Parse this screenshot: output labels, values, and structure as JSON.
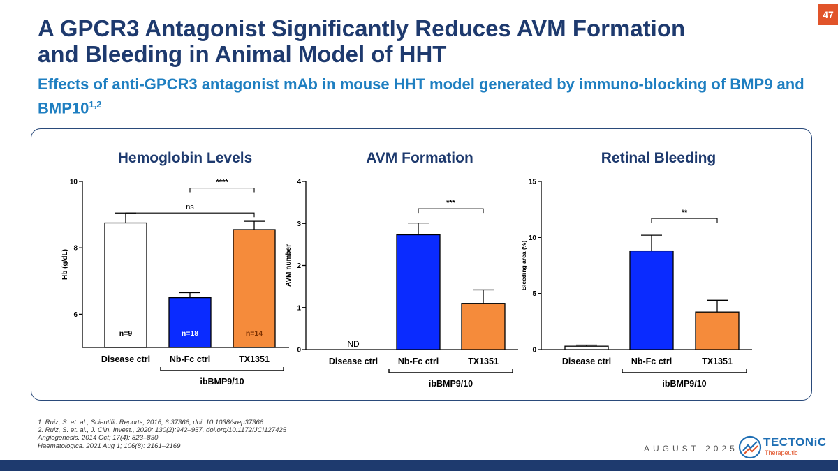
{
  "page_number": "47",
  "title_lines": [
    "A GPCR3 Antagonist Significantly Reduces AVM Formation",
    "and Bleeding in Animal Model of HHT"
  ],
  "subtitle": {
    "text": "Effects of anti-GPCR3 antagonist mAb in mouse HHT model generated by immuno-blocking of BMP9 and BMP10",
    "superscript": "1,2"
  },
  "colors": {
    "primary": "#1e3a6e",
    "accent_blue": "#1f7fc1",
    "bar_blue": "#0a2bff",
    "bar_orange": "#f58b3b",
    "page_badge": "#e1542a"
  },
  "chart_data": [
    {
      "type": "bar",
      "title": "Hemoglobin Levels",
      "categories": [
        "Disease ctrl",
        "Nb-Fc ctrl",
        "TX1351"
      ],
      "values": [
        8.75,
        6.5,
        8.55
      ],
      "errors": [
        0.3,
        0.15,
        0.25
      ],
      "bar_colors": [
        "#ffffff",
        "#0a2bff",
        "#f58b3b"
      ],
      "ylabel": "Hb (g/dL)",
      "ylim": [
        5,
        10
      ],
      "yticks": [
        "6",
        "8",
        "10"
      ],
      "ytick_values": [
        6,
        8,
        10
      ],
      "n_labels": [
        "n=9",
        "n=18",
        "n=14"
      ],
      "group_label": "ibBMP9/10",
      "group_categories": [
        "Nb-Fc ctrl",
        "TX1351"
      ],
      "significance": [
        {
          "from": "Nb-Fc ctrl",
          "to": "TX1351",
          "label": "****",
          "y": 9.8
        },
        {
          "from": "Disease ctrl",
          "to": "TX1351",
          "label": "ns",
          "y": 9.05
        }
      ]
    },
    {
      "type": "bar",
      "title": "AVM Formation",
      "categories": [
        "Disease ctrl",
        "Nb-Fc ctrl",
        "TX1351"
      ],
      "values": [
        0,
        2.73,
        1.1
      ],
      "errors": [
        0,
        0.28,
        0.32
      ],
      "bar_colors": [
        "#ffffff",
        "#0a2bff",
        "#f58b3b"
      ],
      "ylabel": "AVM number",
      "ylim": [
        0,
        4
      ],
      "yticks": [
        "0",
        "1",
        "2",
        "3",
        "4"
      ],
      "ytick_values": [
        0,
        1,
        2,
        3,
        4
      ],
      "annotations": [
        {
          "category": "Disease ctrl",
          "text": "ND"
        }
      ],
      "group_label": "ibBMP9/10",
      "group_categories": [
        "Nb-Fc ctrl",
        "TX1351"
      ],
      "significance": [
        {
          "from": "Nb-Fc ctrl",
          "to": "TX1351",
          "label": "***",
          "y": 3.35
        }
      ]
    },
    {
      "type": "bar",
      "title": "Retinal Bleeding",
      "categories": [
        "Disease ctrl",
        "Nb-Fc ctrl",
        "TX1351"
      ],
      "values": [
        0.3,
        8.8,
        3.35
      ],
      "errors": [
        0.1,
        1.4,
        1.05
      ],
      "bar_colors": [
        "#ffffff",
        "#0a2bff",
        "#f58b3b"
      ],
      "ylabel": "Bleeding area (%)",
      "ylim": [
        0,
        15
      ],
      "yticks": [
        "0",
        "5",
        "10",
        "15"
      ],
      "ytick_values": [
        0,
        5,
        10,
        15
      ],
      "group_label": "ibBMP9/10",
      "group_categories": [
        "Nb-Fc ctrl",
        "TX1351"
      ],
      "significance": [
        {
          "from": "Nb-Fc ctrl",
          "to": "TX1351",
          "label": "**",
          "y": 11.7
        }
      ]
    }
  ],
  "references": [
    "1. Ruiz, S. et. al., Scientific Reports, 2016; 6:37366, doi: 10.1038/srep37366",
    "2. Ruiz, S. et. al., J. Clin. Invest., 2020; 130(2):942–957, doi.org/10.1172/JCI127425",
    "Angiogenesis. 2014 Oct; 17(4): 823–830",
    "Haematologica. 2021 Aug 1; 106(8): 2161–2169"
  ],
  "date": "AUGUST 2025",
  "logo": {
    "name": "TECTONiC",
    "sub": "Therapeutic",
    "icon": "tectonic-logo-icon"
  }
}
